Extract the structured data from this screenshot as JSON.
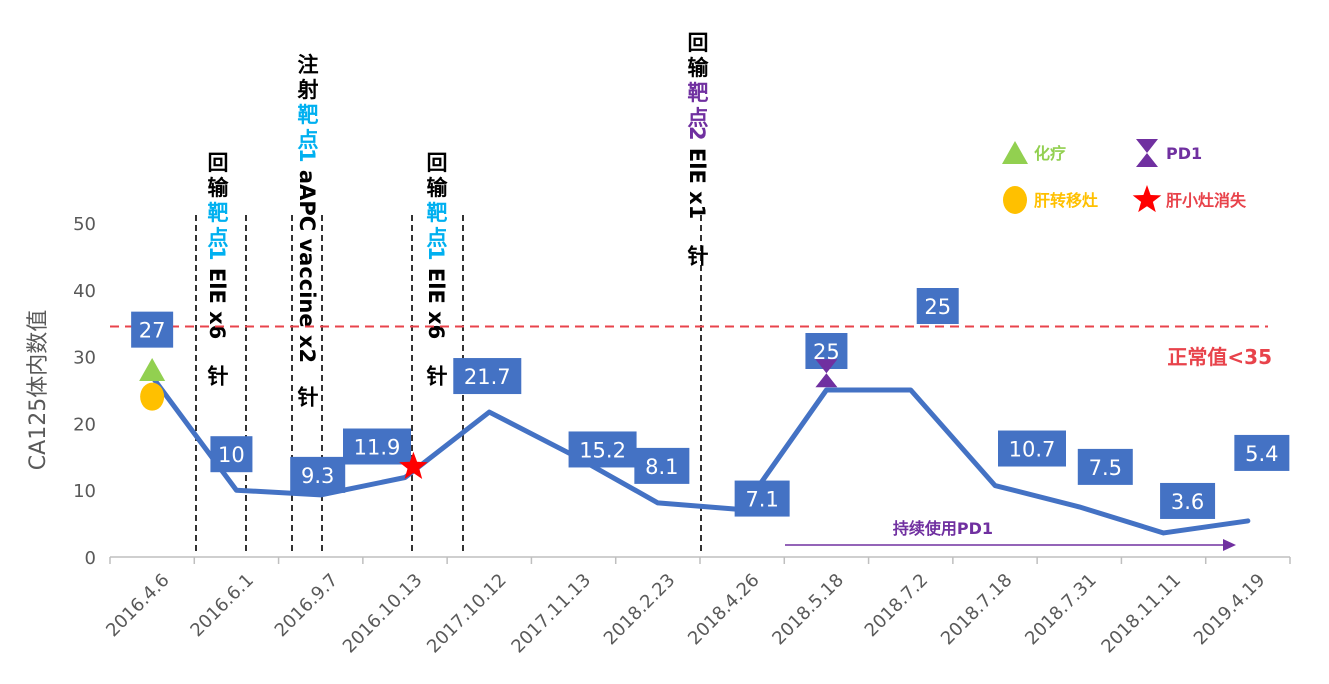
{
  "chart_data": {
    "type": "line",
    "ylabel": "CA125体内数值",
    "ylim": [
      0,
      50
    ],
    "yticks": [
      0,
      10,
      20,
      30,
      40,
      50
    ],
    "grid": false,
    "categories": [
      "2016.4.6",
      "2016.6.1",
      "2016.9.7",
      "2016.10.13",
      "2017.10.12",
      "2017.11.13",
      "2018.2.23",
      "2018.4.26",
      "2018.5.18",
      "2018.7.2",
      "2018.7.18",
      "2018.7.31",
      "2018.11.11",
      "2019.4.19"
    ],
    "series": [
      {
        "values": [
          27,
          10,
          9.3,
          11.9,
          21.7,
          15.2,
          8.1,
          7.1,
          25,
          25,
          10.7,
          7.5,
          3.6,
          5.4
        ],
        "labels": [
          "27",
          "10",
          "9.3",
          "11.9",
          "21.7",
          "15.2",
          "8.1",
          "7.1",
          "25",
          "25",
          "10.7",
          "7.5",
          "3.6",
          "5.4"
        ],
        "color": "#4472C4"
      }
    ],
    "reference_line": {
      "value": 34.5,
      "label": "正常值<35",
      "color": "#E8434B"
    },
    "arrow_label": "持续使用PD1",
    "arrow_color": "#7030A0",
    "annotations": [
      {
        "lines": [
          [
            {
              "t": "回",
              "c": "#000000"
            }
          ],
          [
            {
              "t": "输",
              "c": "#000000"
            }
          ],
          [
            {
              "t": "靶",
              "c": "#00B0F0"
            }
          ],
          [
            {
              "t": "点",
              "c": "#00B0F0"
            }
          ],
          [
            {
              "t": "1",
              "c": "#00B0F0",
              "rot": true
            },
            {
              "t": " ElE x6",
              "c": "#000000",
              "rot": true
            }
          ],
          [
            {
              "t": "针",
              "c": "#000000"
            }
          ]
        ]
      },
      {
        "lines": [
          [
            {
              "t": "注",
              "c": "#000000"
            }
          ],
          [
            {
              "t": "射",
              "c": "#000000"
            }
          ],
          [
            {
              "t": "靶",
              "c": "#00B0F0"
            }
          ],
          [
            {
              "t": "点",
              "c": "#00B0F0"
            }
          ],
          [
            {
              "t": "1",
              "c": "#00B0F0",
              "rot": true
            },
            {
              "t": " aAPC vaccine x2",
              "c": "#000000",
              "rot": true
            }
          ],
          [
            {
              "t": "针",
              "c": "#000000"
            }
          ]
        ]
      },
      {
        "lines": [
          [
            {
              "t": "回",
              "c": "#000000"
            }
          ],
          [
            {
              "t": "输",
              "c": "#000000"
            }
          ],
          [
            {
              "t": "靶",
              "c": "#00B0F0"
            }
          ],
          [
            {
              "t": "点",
              "c": "#00B0F0"
            }
          ],
          [
            {
              "t": "1",
              "c": "#00B0F0",
              "rot": true
            },
            {
              "t": " ElE x6",
              "c": "#000000",
              "rot": true
            }
          ],
          [
            {
              "t": "针",
              "c": "#000000"
            }
          ]
        ]
      },
      {
        "lines": [
          [
            {
              "t": "回",
              "c": "#000000"
            }
          ],
          [
            {
              "t": "输",
              "c": "#000000"
            }
          ],
          [
            {
              "t": "靶",
              "c": "#7030A0"
            }
          ],
          [
            {
              "t": "点",
              "c": "#7030A0"
            }
          ],
          [
            {
              "t": "2",
              "c": "#7030A0",
              "rot": true
            },
            {
              "t": " ElE x1",
              "c": "#000000",
              "rot": true
            }
          ],
          [
            {
              "t": "针",
              "c": "#000000"
            }
          ]
        ]
      }
    ],
    "markers": [
      {
        "symbol": "triangle",
        "meaning": "化疗",
        "color": "#92D050",
        "x_index": 0,
        "y": 28
      },
      {
        "symbol": "circle",
        "meaning": "肝转移灶",
        "color": "#FFC000",
        "x_index": 0,
        "y": 24
      },
      {
        "symbol": "star",
        "meaning": "肝小灶消失",
        "color": "#FF0000",
        "x_index": 3.1,
        "y": 13.5
      },
      {
        "symbol": "hourglass",
        "meaning": "PD1",
        "color": "#7030A0",
        "x_index": 8,
        "y": 27.5
      }
    ],
    "legend": [
      {
        "symbol": "triangle",
        "label": "化疗",
        "color": "#92D050",
        "text_color": "#92D050"
      },
      {
        "symbol": "hourglass",
        "label": "PD1",
        "color": "#7030A0",
        "text_color": "#7030A0"
      },
      {
        "symbol": "circle",
        "label": "肝转移灶",
        "color": "#FFC000",
        "text_color": "#FFC000"
      },
      {
        "symbol": "star",
        "label": "肝小灶消失",
        "color": "#FF0000",
        "text_color": "#E8434B"
      }
    ],
    "legend_position": "top-right"
  }
}
